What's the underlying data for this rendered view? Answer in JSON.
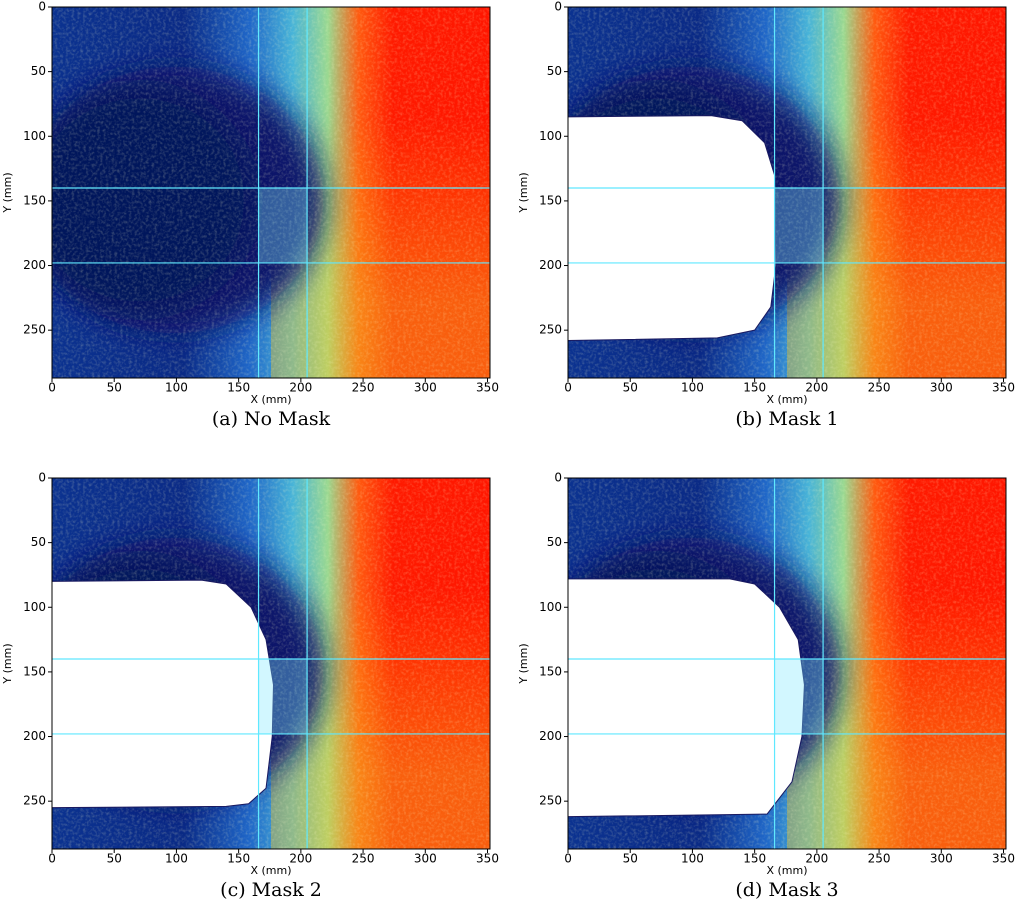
{
  "chart_data": [
    {
      "type": "field",
      "caption": "(a) No Mask",
      "xlabel": "X (mm)",
      "ylabel": "Y (mm)",
      "xlim": [
        0,
        352
      ],
      "ylim": [
        287,
        0
      ],
      "xticks": [
        0,
        50,
        100,
        150,
        200,
        250,
        300,
        350
      ],
      "yticks": [
        0,
        50,
        100,
        150,
        200,
        250
      ],
      "guide_x": [
        166,
        205
      ],
      "guide_y": [
        140,
        198
      ]
    },
    {
      "type": "field",
      "caption": "(b) Mask 1",
      "xlabel": "X (mm)",
      "ylabel": "Y (mm)",
      "xlim": [
        0,
        352
      ],
      "ylim": [
        287,
        0
      ],
      "xticks": [
        0,
        50,
        100,
        150,
        200,
        250,
        300,
        350
      ],
      "yticks": [
        0,
        50,
        100,
        150,
        200,
        250
      ],
      "guide_x": [
        166,
        205
      ],
      "guide_y": [
        140,
        198
      ],
      "mask": {
        "x": [
          0,
          115,
          140,
          158,
          166,
          167,
          163,
          150,
          120,
          0
        ],
        "y": [
          85,
          84,
          88,
          105,
          130,
          200,
          232,
          250,
          256,
          258
        ]
      }
    },
    {
      "type": "field",
      "caption": "(c) Mask 2",
      "xlabel": "X (mm)",
      "ylabel": "Y (mm)",
      "xlim": [
        0,
        352
      ],
      "ylim": [
        287,
        0
      ],
      "xticks": [
        0,
        50,
        100,
        150,
        200,
        250,
        300,
        350
      ],
      "yticks": [
        0,
        50,
        100,
        150,
        200,
        250
      ],
      "guide_x": [
        166,
        205
      ],
      "guide_y": [
        140,
        198
      ],
      "mask": {
        "x": [
          0,
          120,
          140,
          160,
          172,
          178,
          177,
          172,
          158,
          140,
          0
        ],
        "y": [
          80,
          79,
          82,
          100,
          125,
          160,
          200,
          240,
          252,
          254,
          255
        ]
      }
    },
    {
      "type": "field",
      "caption": "(d) Mask 3",
      "xlabel": "X (mm)",
      "ylabel": "Y (mm)",
      "xlim": [
        0,
        352
      ],
      "ylim": [
        287,
        0
      ],
      "xticks": [
        0,
        50,
        100,
        150,
        200,
        250,
        300,
        350
      ],
      "yticks": [
        0,
        50,
        100,
        150,
        200,
        250
      ],
      "guide_x": [
        166,
        205
      ],
      "guide_y": [
        140,
        198
      ],
      "mask": {
        "x": [
          0,
          130,
          150,
          170,
          185,
          190,
          188,
          180,
          160,
          0
        ],
        "y": [
          78,
          78,
          82,
          100,
          125,
          160,
          200,
          235,
          260,
          262
        ]
      }
    }
  ]
}
